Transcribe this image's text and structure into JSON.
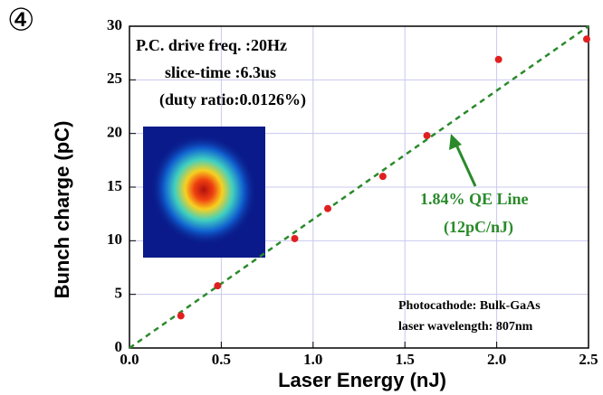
{
  "chart_data": {
    "type": "scatter",
    "panel_label": "④",
    "xlabel": "Laser Energy (nJ)",
    "ylabel": "Bunch charge (pC)",
    "x": [
      0.28,
      0.48,
      0.9,
      1.08,
      1.38,
      1.62,
      2.01,
      2.49
    ],
    "series": [
      {
        "color": "#e02020",
        "values": [
          3.0,
          5.8,
          10.2,
          13.0,
          16.0,
          19.8,
          26.9,
          28.8
        ]
      }
    ],
    "fit_line": {
      "x": [
        0,
        2.5
      ],
      "values": [
        0,
        30
      ],
      "color": "#2a8a2a",
      "dashed": true
    },
    "xlim": [
      0,
      2.5
    ],
    "ylim": [
      0,
      30
    ],
    "xticks": [
      {
        "value": 0,
        "label": "0.0"
      },
      0.5,
      {
        "value": 1,
        "label": "1.0"
      },
      1.5,
      {
        "value": 2,
        "label": "2.0"
      },
      2.5
    ],
    "yticks": [
      0,
      5,
      10,
      15,
      20,
      25,
      30
    ],
    "grid": true,
    "annotations": [
      "P.C. drive freq. :20Hz",
      "slice-time :6.3us",
      "(duty ratio:0.0126%)",
      "1.84% QE Line",
      "(12pC/nJ)",
      "Photocathode: Bulk-GaAs",
      "laser wavelength: 807nm"
    ]
  }
}
